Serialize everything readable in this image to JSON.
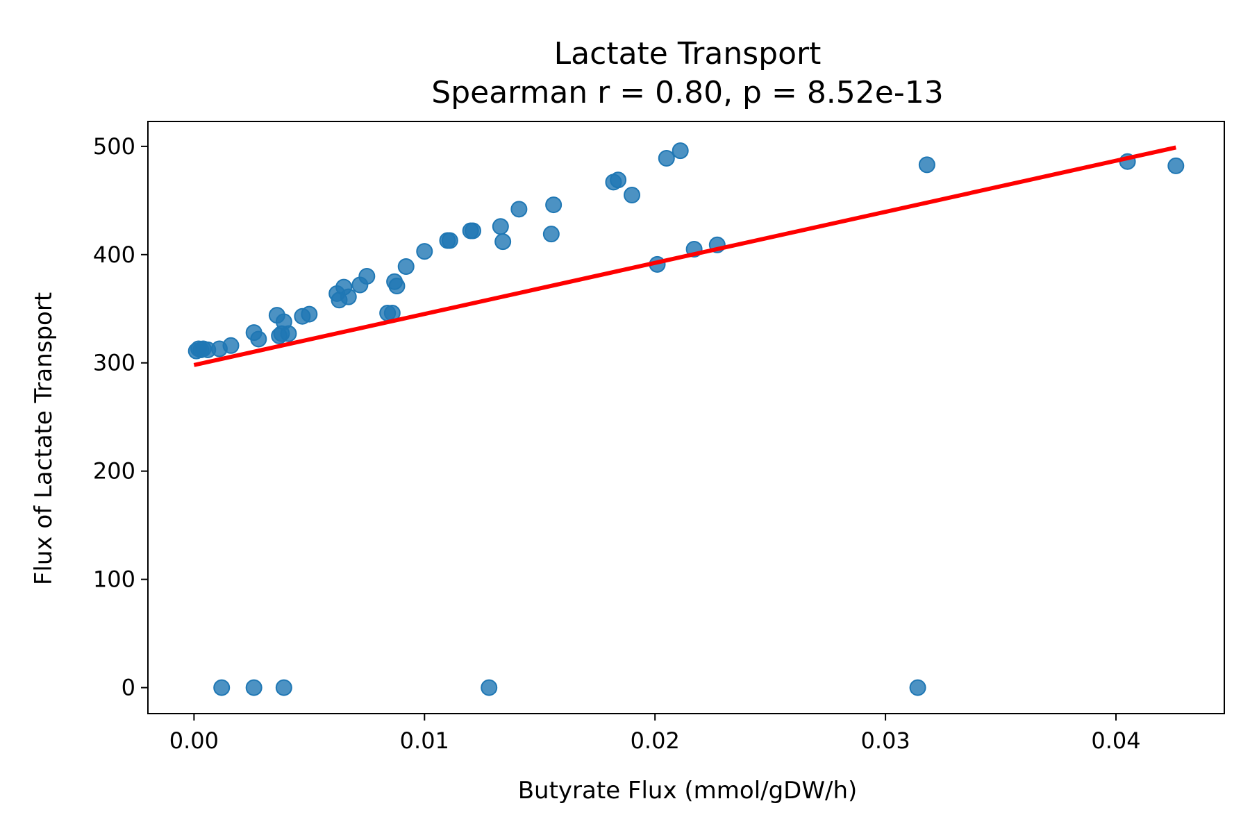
{
  "chart_data": {
    "type": "scatter",
    "title": "Lactate Transport",
    "subtitle": "Spearman r = 0.80, p = 8.52e-13",
    "xlabel": "Butyrate Flux (mmol/gDW/h)",
    "ylabel": "Flux of Lactate Transport",
    "xlim": [
      -0.002,
      0.0447
    ],
    "ylim": [
      -24,
      523
    ],
    "x_ticks": [
      0.0,
      0.01,
      0.02,
      0.03,
      0.04
    ],
    "x_tick_labels": [
      "0.00",
      "0.01",
      "0.02",
      "0.03",
      "0.04"
    ],
    "y_ticks": [
      0,
      100,
      200,
      300,
      400,
      500
    ],
    "y_tick_labels": [
      "0",
      "100",
      "200",
      "300",
      "400",
      "500"
    ],
    "grid": false,
    "colors": {
      "points": "#1f77b4",
      "fit_line": "#ff0000"
    },
    "series": [
      {
        "points": [
          [
            0.0001,
            311
          ],
          [
            0.0002,
            313
          ],
          [
            0.0003,
            312
          ],
          [
            0.0004,
            313
          ],
          [
            0.0006,
            312
          ],
          [
            0.0011,
            313
          ],
          [
            0.0016,
            316
          ],
          [
            0.0026,
            328
          ],
          [
            0.0028,
            322
          ],
          [
            0.0036,
            344
          ],
          [
            0.0039,
            338
          ],
          [
            0.0037,
            325
          ],
          [
            0.0038,
            327
          ],
          [
            0.0041,
            327
          ],
          [
            0.0047,
            343
          ],
          [
            0.005,
            345
          ],
          [
            0.0062,
            364
          ],
          [
            0.0063,
            358
          ],
          [
            0.0065,
            370
          ],
          [
            0.0067,
            361
          ],
          [
            0.0072,
            372
          ],
          [
            0.0075,
            380
          ],
          [
            0.0084,
            346
          ],
          [
            0.0086,
            346
          ],
          [
            0.0087,
            375
          ],
          [
            0.0088,
            371
          ],
          [
            0.0092,
            389
          ],
          [
            0.01,
            403
          ],
          [
            0.011,
            413
          ],
          [
            0.0111,
            413
          ],
          [
            0.012,
            422
          ],
          [
            0.0121,
            422
          ],
          [
            0.0133,
            426
          ],
          [
            0.0134,
            412
          ],
          [
            0.0141,
            442
          ],
          [
            0.0155,
            419
          ],
          [
            0.0156,
            446
          ],
          [
            0.0182,
            467
          ],
          [
            0.0184,
            469
          ],
          [
            0.019,
            455
          ],
          [
            0.0201,
            391
          ],
          [
            0.0205,
            489
          ],
          [
            0.0211,
            496
          ],
          [
            0.0217,
            405
          ],
          [
            0.0227,
            409
          ],
          [
            0.0318,
            483
          ],
          [
            0.0405,
            486
          ],
          [
            0.0426,
            482
          ],
          [
            0.0012,
            0
          ],
          [
            0.0026,
            0
          ],
          [
            0.0039,
            0
          ],
          [
            0.0128,
            0
          ],
          [
            0.0314,
            0
          ]
        ]
      }
    ],
    "fit_line": {
      "x": [
        0.0,
        0.0426
      ],
      "y": [
        298,
        499
      ]
    }
  }
}
